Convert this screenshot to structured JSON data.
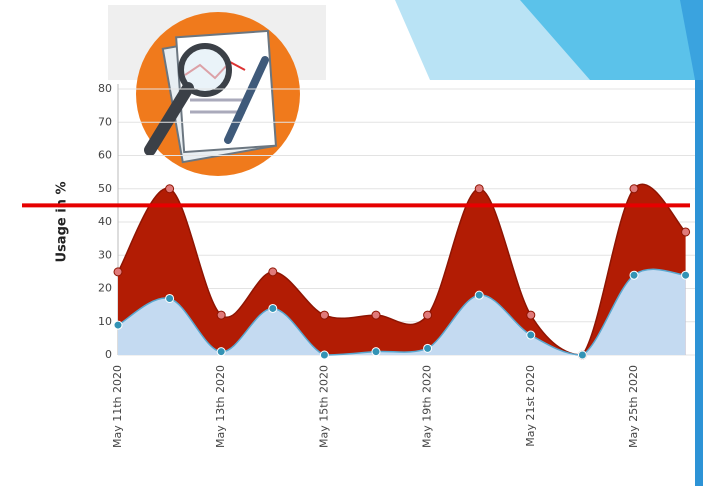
{
  "chart_data": {
    "type": "area",
    "y_label": "Usage in %",
    "categories": [
      "May 11th 2020",
      null,
      "May 13th 2020",
      null,
      "May 15th 2020",
      null,
      "May 19th 2020",
      null,
      "May 21st 2020",
      null,
      "May 25th 2020",
      null
    ],
    "series": [
      {
        "color": "#b21c04",
        "values": [
          25,
          50,
          12,
          25,
          12,
          12,
          12,
          50,
          12,
          0,
          50,
          37
        ]
      },
      {
        "color": "#c4daf1",
        "values": [
          9,
          17,
          1,
          14,
          0,
          1,
          2,
          18,
          6,
          0,
          24,
          24
        ]
      }
    ],
    "ylim": [
      0,
      80
    ],
    "yticks": [
      0,
      10,
      20,
      30,
      40,
      50,
      60,
      70,
      80
    ],
    "grid": true,
    "threshold": {
      "value": 45,
      "color": "#e60000"
    }
  }
}
